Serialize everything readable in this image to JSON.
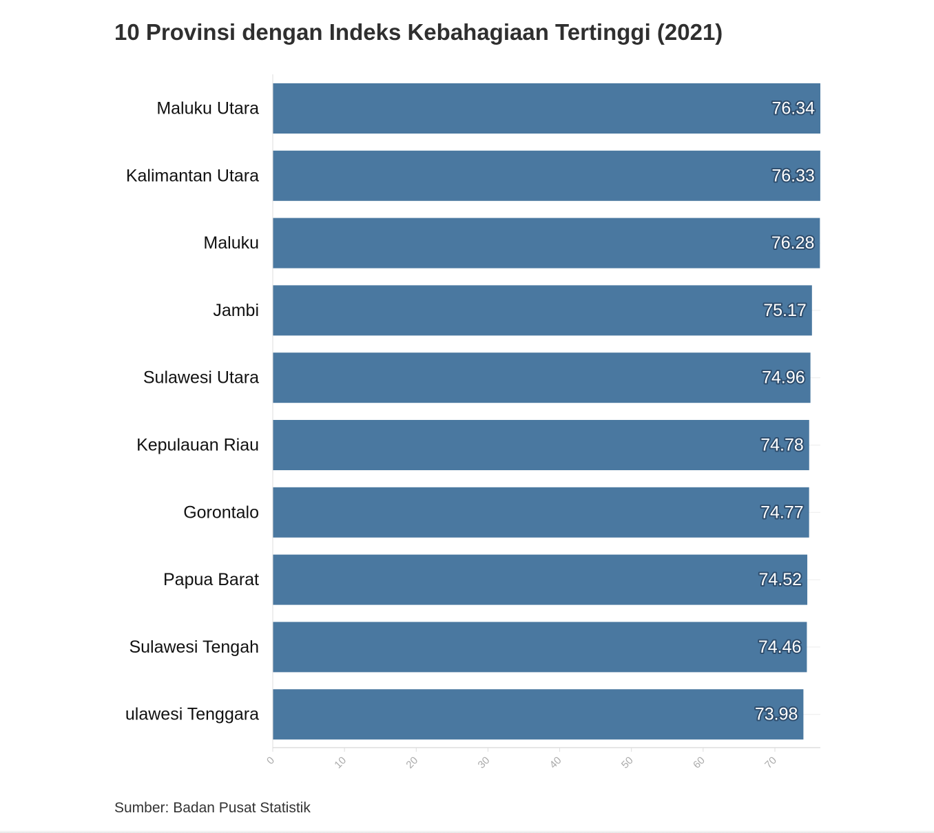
{
  "chart_data": {
    "type": "bar",
    "orientation": "horizontal",
    "title": "10 Provinsi dengan Indeks Kebahagiaan Tertinggi (2021)",
    "source": "Sumber: Badan Pusat Statistik",
    "categories": [
      "Maluku Utara",
      "Kalimantan Utara",
      "Maluku",
      "Jambi",
      "Sulawesi Utara",
      "Kepulauan Riau",
      "Gorontalo",
      "Papua Barat",
      "Sulawesi Tengah",
      "ulawesi Tenggara"
    ],
    "values": [
      76.34,
      76.33,
      76.28,
      75.17,
      74.96,
      74.78,
      74.77,
      74.52,
      74.46,
      73.98
    ],
    "value_labels": [
      "76.34",
      "76.33",
      "76.28",
      "75.17",
      "74.96",
      "74.78",
      "74.77",
      "74.52",
      "74.46",
      "73.98"
    ],
    "xlim": [
      0,
      76.34
    ],
    "x_ticks": [
      "0",
      "10",
      "20",
      "30",
      "40",
      "50",
      "60",
      "70"
    ],
    "bar_color": "#4a78a0",
    "grid": true,
    "legend": false
  }
}
